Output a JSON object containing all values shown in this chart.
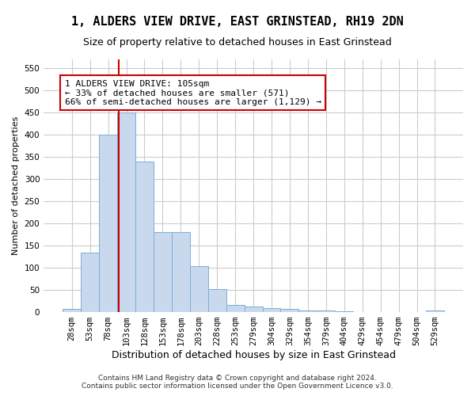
{
  "title": "1, ALDERS VIEW DRIVE, EAST GRINSTEAD, RH19 2DN",
  "subtitle": "Size of property relative to detached houses in East Grinstead",
  "xlabel": "Distribution of detached houses by size in East Grinstead",
  "ylabel": "Number of detached properties",
  "footer_line1": "Contains HM Land Registry data © Crown copyright and database right 2024.",
  "footer_line2": "Contains public sector information licensed under the Open Government Licence v3.0.",
  "bin_labels": [
    "28sqm",
    "53sqm",
    "78sqm",
    "103sqm",
    "128sqm",
    "153sqm",
    "178sqm",
    "203sqm",
    "228sqm",
    "253sqm",
    "279sqm",
    "304sqm",
    "329sqm",
    "354sqm",
    "379sqm",
    "404sqm",
    "429sqm",
    "454sqm",
    "479sqm",
    "504sqm",
    "529sqm"
  ],
  "bar_values": [
    8,
    135,
    400,
    450,
    340,
    180,
    180,
    103,
    52,
    16,
    12,
    9,
    7,
    3,
    3,
    2,
    1,
    0,
    0,
    0,
    3
  ],
  "bar_color": "#c9d9ed",
  "bar_edgecolor": "#7aafd4",
  "annotation_text": "1 ALDERS VIEW DRIVE: 105sqm\n← 33% of detached houses are smaller (571)\n66% of semi-detached houses are larger (1,129) →",
  "annotation_box_color": "#ffffff",
  "annotation_box_edgecolor": "#cc0000",
  "vline_color": "#cc0000",
  "ylim": [
    0,
    570
  ],
  "yticks": [
    0,
    50,
    100,
    150,
    200,
    250,
    300,
    350,
    400,
    450,
    500,
    550
  ],
  "background_color": "#ffffff",
  "grid_color": "#cccccc",
  "title_fontsize": 11,
  "subtitle_fontsize": 9,
  "annotation_fontsize": 8,
  "ylabel_fontsize": 8,
  "xlabel_fontsize": 9,
  "tick_fontsize": 7.5,
  "footer_fontsize": 6.5
}
